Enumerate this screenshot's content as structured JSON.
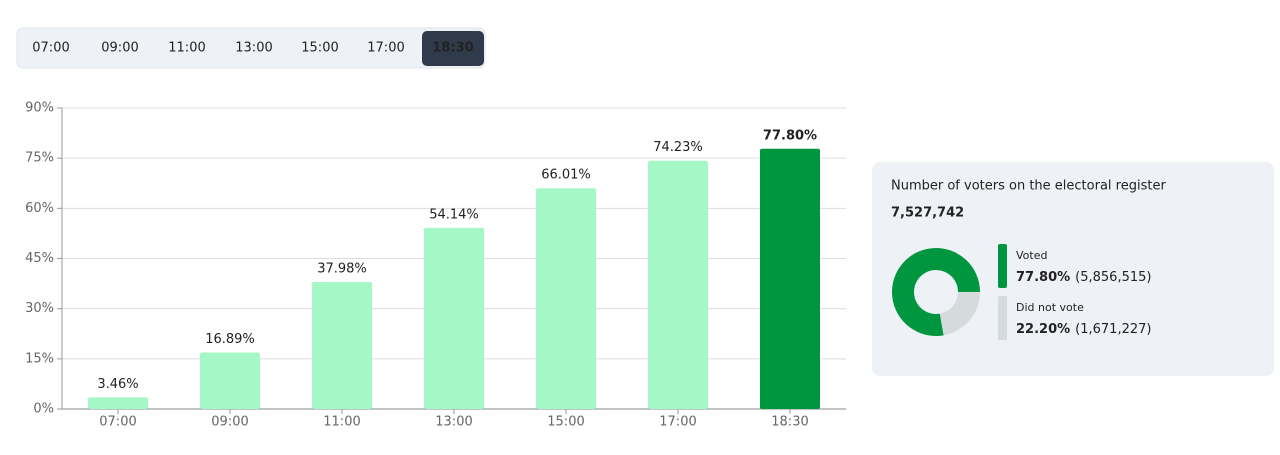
{
  "tabs": {
    "items": [
      "07:00",
      "09:00",
      "11:00",
      "13:00",
      "15:00",
      "17:00",
      "18:30"
    ],
    "selected_index": 6
  },
  "chart_data": [
    {
      "type": "bar",
      "categories": [
        "07:00",
        "09:00",
        "11:00",
        "13:00",
        "15:00",
        "17:00",
        "18:30"
      ],
      "values": [
        3.46,
        16.89,
        37.98,
        54.14,
        66.01,
        74.23,
        77.8
      ],
      "value_labels": [
        "3.46%",
        "16.89%",
        "37.98%",
        "54.14%",
        "66.01%",
        "74.23%",
        "77.80%"
      ],
      "colors": [
        "#a6f7c6",
        "#a6f7c6",
        "#a6f7c6",
        "#a6f7c6",
        "#a6f7c6",
        "#a6f7c6",
        "#00963f"
      ],
      "ylim": [
        0,
        90
      ],
      "yticks": [
        {
          "value": 0,
          "label": "0%"
        },
        {
          "value": 15,
          "label": "15%"
        },
        {
          "value": 30,
          "label": "30%"
        },
        {
          "value": 45,
          "label": "45%"
        },
        {
          "value": 60,
          "label": "60%"
        },
        {
          "value": 75,
          "label": "75%"
        },
        {
          "value": 90,
          "label": "90%"
        }
      ],
      "grid": true
    },
    {
      "type": "pie",
      "title": "Number of voters on the electoral register",
      "subtitle": "7,527,742",
      "categories": [
        "Voted",
        "Did not vote"
      ],
      "values": [
        77.8,
        22.2
      ],
      "value_labels": [
        "77.80%",
        "22.20%"
      ],
      "counts": [
        "(5,856,515)",
        "(1,671,227)"
      ],
      "colors": [
        "#00963f",
        "#d5dadd"
      ],
      "donut": true
    }
  ]
}
